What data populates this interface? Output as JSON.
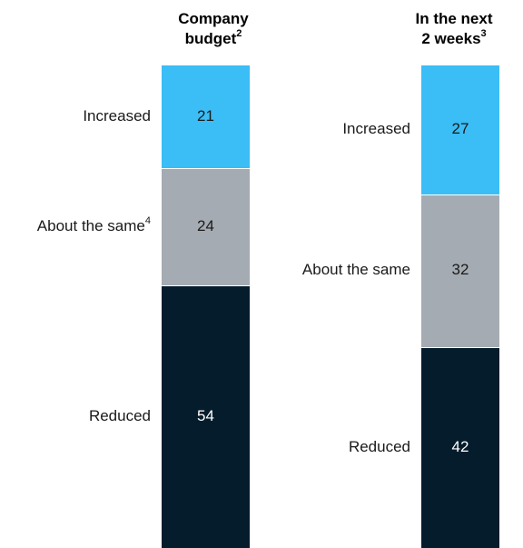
{
  "chart_data": {
    "type": "bar",
    "stacked": true,
    "orientation": "vertical",
    "categories": [
      {
        "title_line1": "Company",
        "title_line2": "budget",
        "title_sup": "2"
      },
      {
        "title_line1": "In the next",
        "title_line2": "2 weeks",
        "title_sup": "3"
      }
    ],
    "series": [
      {
        "name": "Increased",
        "color": "#3bbdf5",
        "text_color": "#1a1a1a",
        "values": [
          21,
          27
        ],
        "label_sups": [
          "",
          ""
        ]
      },
      {
        "name": "About the same",
        "color": "#a5abb2",
        "text_color": "#1a1a1a",
        "values": [
          24,
          32
        ],
        "label_sups": [
          "4",
          ""
        ]
      },
      {
        "name": "Reduced",
        "color": "#051c2c",
        "text_color": "#ffffff",
        "values": [
          54,
          42
        ],
        "label_sups": [
          "",
          ""
        ]
      }
    ],
    "value_labels": [
      [
        "21",
        "24",
        "54"
      ],
      [
        "27",
        "32",
        "42"
      ]
    ]
  }
}
